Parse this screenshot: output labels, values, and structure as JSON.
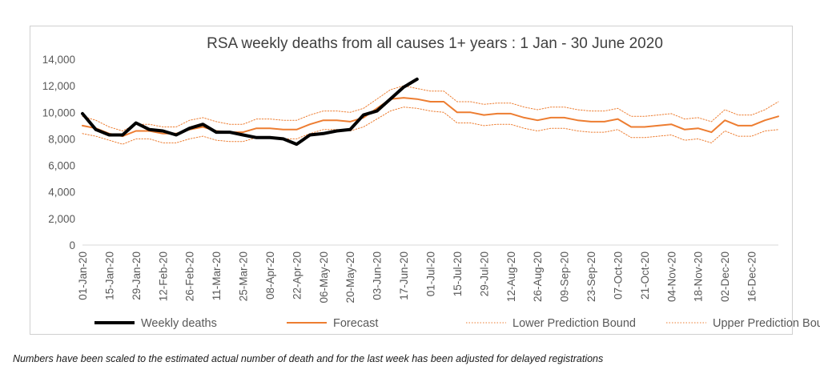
{
  "chart_data": {
    "type": "line",
    "title": "RSA weekly deaths from all causes 1+ years : 1 Jan - 30 June 2020",
    "ylim": [
      0,
      14000
    ],
    "y_ticks": [
      "14,000",
      "12,000",
      "10,000",
      "8,000",
      "6,000",
      "4,000",
      "2,000",
      "0"
    ],
    "y_tick_values": [
      14000,
      12000,
      10000,
      8000,
      6000,
      4000,
      2000,
      0
    ],
    "x_tick_labels": [
      "01-Jan-20",
      "15-Jan-20",
      "29-Jan-20",
      "12-Feb-20",
      "26-Feb-20",
      "11-Mar-20",
      "25-Mar-20",
      "08-Apr-20",
      "22-Apr-20",
      "06-May-20",
      "20-May-20",
      "03-Jun-20",
      "17-Jun-20",
      "01-Jul-20",
      "15-Jul-20",
      "29-Jul-20",
      "12-Aug-20",
      "26-Aug-20",
      "09-Sep-20",
      "23-Sep-20",
      "07-Oct-20",
      "21-Oct-20",
      "04-Nov-20",
      "18-Nov-20",
      "02-Dec-20",
      "16-Dec-20"
    ],
    "series": [
      {
        "name": "Weekly deaths",
        "color": "#000000",
        "style": "solid-thick",
        "values": [
          9900,
          8700,
          8300,
          8300,
          9200,
          8700,
          8600,
          8300,
          8800,
          9100,
          8500,
          8500,
          8300,
          8100,
          8100,
          8000,
          7600,
          8300,
          8400,
          8600,
          8700,
          9800,
          10100,
          11000,
          11900,
          12500
        ]
      },
      {
        "name": "Forecast",
        "color": "#ed7d31",
        "style": "solid",
        "values": [
          9000,
          8800,
          8400,
          8200,
          8600,
          8600,
          8400,
          8400,
          8700,
          8900,
          8600,
          8500,
          8500,
          8800,
          8800,
          8700,
          8700,
          9100,
          9400,
          9400,
          9300,
          9600,
          10300,
          11000,
          11100,
          11000,
          10800,
          10800,
          10000,
          10000,
          9800,
          9900,
          9900,
          9600,
          9400,
          9600,
          9600,
          9400,
          9300,
          9300,
          9500,
          8900,
          8900,
          9000,
          9100,
          8700,
          8800,
          8500,
          9400,
          9000,
          9000,
          9400,
          9700
        ]
      },
      {
        "name": "Lower Prediction Bound",
        "color": "#ed7d31",
        "style": "dotted",
        "values": [
          8400,
          8200,
          7900,
          7600,
          8000,
          8000,
          7700,
          7700,
          8000,
          8200,
          7900,
          7800,
          7800,
          8100,
          8100,
          8000,
          8000,
          8400,
          8700,
          8700,
          8600,
          8900,
          9500,
          10100,
          10400,
          10300,
          10100,
          10000,
          9200,
          9200,
          9000,
          9100,
          9100,
          8800,
          8600,
          8800,
          8800,
          8600,
          8500,
          8500,
          8700,
          8100,
          8100,
          8200,
          8300,
          7900,
          8000,
          7700,
          8600,
          8200,
          8200,
          8600,
          8700
        ]
      },
      {
        "name": "Upper Prediction Bound",
        "color": "#ed7d31",
        "style": "dotted",
        "values": [
          9700,
          9400,
          8900,
          8600,
          9100,
          9100,
          8900,
          8900,
          9400,
          9600,
          9300,
          9100,
          9100,
          9500,
          9500,
          9400,
          9400,
          9800,
          10100,
          10100,
          10000,
          10300,
          11000,
          11700,
          12000,
          11800,
          11600,
          11600,
          10800,
          10800,
          10600,
          10700,
          10700,
          10400,
          10200,
          10400,
          10400,
          10200,
          10100,
          10100,
          10300,
          9700,
          9700,
          9800,
          9900,
          9500,
          9600,
          9300,
          10200,
          9800,
          9800,
          10200,
          10800
        ]
      }
    ],
    "legend_position": "bottom",
    "grid": false
  },
  "footnote": "Numbers have been scaled to the estimated actual number of death and for the last week has been adjusted for delayed registrations"
}
